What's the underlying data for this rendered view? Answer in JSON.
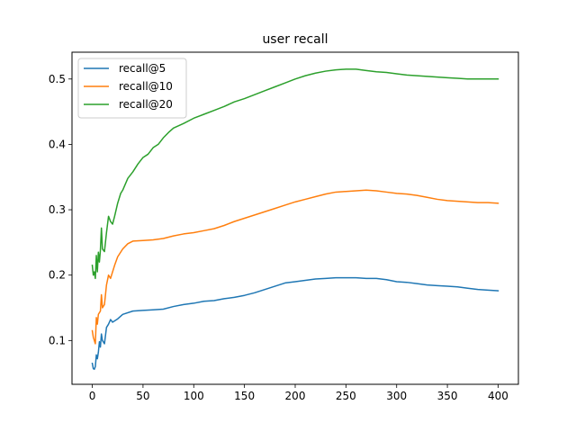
{
  "chart_data": {
    "type": "line",
    "title": "user recall",
    "xlabel": "",
    "ylabel": "",
    "xlim": [
      -20,
      420
    ],
    "ylim": [
      0.033,
      0.541
    ],
    "xticks": [
      0,
      50,
      100,
      150,
      200,
      250,
      300,
      350,
      400
    ],
    "yticks": [
      0.1,
      0.2,
      0.3,
      0.4,
      0.5
    ],
    "xtick_labels": [
      "0",
      "50",
      "100",
      "150",
      "200",
      "250",
      "300",
      "350",
      "400"
    ],
    "ytick_labels": [
      "0.1",
      "0.2",
      "0.3",
      "0.4",
      "0.5"
    ],
    "grid": false,
    "legend_position": "top-left",
    "series": [
      {
        "name": "recall@5",
        "color": "#1f77b4",
        "points": [
          [
            0,
            0.065
          ],
          [
            1,
            0.057
          ],
          [
            2,
            0.056
          ],
          [
            3,
            0.06
          ],
          [
            4,
            0.078
          ],
          [
            5,
            0.072
          ],
          [
            6,
            0.082
          ],
          [
            7,
            0.098
          ],
          [
            8,
            0.09
          ],
          [
            9,
            0.11
          ],
          [
            10,
            0.1
          ],
          [
            12,
            0.095
          ],
          [
            14,
            0.12
          ],
          [
            16,
            0.125
          ],
          [
            18,
            0.132
          ],
          [
            20,
            0.128
          ],
          [
            25,
            0.133
          ],
          [
            30,
            0.14
          ],
          [
            40,
            0.145
          ],
          [
            50,
            0.146
          ],
          [
            60,
            0.147
          ],
          [
            70,
            0.148
          ],
          [
            80,
            0.152
          ],
          [
            90,
            0.155
          ],
          [
            100,
            0.157
          ],
          [
            110,
            0.16
          ],
          [
            120,
            0.161
          ],
          [
            130,
            0.164
          ],
          [
            140,
            0.166
          ],
          [
            150,
            0.169
          ],
          [
            160,
            0.173
          ],
          [
            170,
            0.178
          ],
          [
            180,
            0.183
          ],
          [
            190,
            0.188
          ],
          [
            200,
            0.19
          ],
          [
            210,
            0.192
          ],
          [
            220,
            0.194
          ],
          [
            230,
            0.195
          ],
          [
            240,
            0.196
          ],
          [
            250,
            0.196
          ],
          [
            260,
            0.196
          ],
          [
            270,
            0.195
          ],
          [
            280,
            0.195
          ],
          [
            290,
            0.193
          ],
          [
            300,
            0.19
          ],
          [
            310,
            0.189
          ],
          [
            320,
            0.187
          ],
          [
            330,
            0.185
          ],
          [
            340,
            0.184
          ],
          [
            350,
            0.183
          ],
          [
            360,
            0.182
          ],
          [
            370,
            0.18
          ],
          [
            380,
            0.178
          ],
          [
            390,
            0.177
          ],
          [
            400,
            0.176
          ]
        ]
      },
      {
        "name": "recall@10",
        "color": "#ff7f0e",
        "points": [
          [
            0,
            0.115
          ],
          [
            1,
            0.105
          ],
          [
            2,
            0.1
          ],
          [
            3,
            0.095
          ],
          [
            4,
            0.135
          ],
          [
            5,
            0.125
          ],
          [
            6,
            0.14
          ],
          [
            8,
            0.145
          ],
          [
            9,
            0.17
          ],
          [
            10,
            0.15
          ],
          [
            12,
            0.155
          ],
          [
            14,
            0.185
          ],
          [
            16,
            0.2
          ],
          [
            18,
            0.195
          ],
          [
            20,
            0.205
          ],
          [
            22,
            0.215
          ],
          [
            25,
            0.228
          ],
          [
            30,
            0.24
          ],
          [
            35,
            0.248
          ],
          [
            40,
            0.252
          ],
          [
            50,
            0.253
          ],
          [
            60,
            0.254
          ],
          [
            70,
            0.256
          ],
          [
            80,
            0.26
          ],
          [
            90,
            0.263
          ],
          [
            100,
            0.265
          ],
          [
            110,
            0.268
          ],
          [
            120,
            0.271
          ],
          [
            130,
            0.276
          ],
          [
            140,
            0.282
          ],
          [
            150,
            0.287
          ],
          [
            160,
            0.292
          ],
          [
            170,
            0.297
          ],
          [
            180,
            0.302
          ],
          [
            190,
            0.307
          ],
          [
            200,
            0.312
          ],
          [
            210,
            0.316
          ],
          [
            220,
            0.32
          ],
          [
            230,
            0.324
          ],
          [
            240,
            0.327
          ],
          [
            250,
            0.328
          ],
          [
            260,
            0.329
          ],
          [
            270,
            0.33
          ],
          [
            280,
            0.329
          ],
          [
            290,
            0.327
          ],
          [
            300,
            0.325
          ],
          [
            310,
            0.324
          ],
          [
            320,
            0.322
          ],
          [
            330,
            0.319
          ],
          [
            340,
            0.316
          ],
          [
            350,
            0.314
          ],
          [
            360,
            0.313
          ],
          [
            370,
            0.312
          ],
          [
            380,
            0.311
          ],
          [
            390,
            0.311
          ],
          [
            400,
            0.31
          ]
        ]
      },
      {
        "name": "recall@20",
        "color": "#2ca02c",
        "points": [
          [
            0,
            0.215
          ],
          [
            1,
            0.2
          ],
          [
            2,
            0.205
          ],
          [
            3,
            0.195
          ],
          [
            4,
            0.23
          ],
          [
            5,
            0.205
          ],
          [
            6,
            0.235
          ],
          [
            7,
            0.22
          ],
          [
            8,
            0.238
          ],
          [
            9,
            0.272
          ],
          [
            10,
            0.24
          ],
          [
            12,
            0.236
          ],
          [
            14,
            0.265
          ],
          [
            16,
            0.29
          ],
          [
            18,
            0.282
          ],
          [
            20,
            0.278
          ],
          [
            22,
            0.29
          ],
          [
            25,
            0.31
          ],
          [
            28,
            0.325
          ],
          [
            30,
            0.33
          ],
          [
            35,
            0.348
          ],
          [
            40,
            0.358
          ],
          [
            45,
            0.37
          ],
          [
            50,
            0.38
          ],
          [
            55,
            0.385
          ],
          [
            60,
            0.395
          ],
          [
            65,
            0.4
          ],
          [
            70,
            0.41
          ],
          [
            75,
            0.418
          ],
          [
            80,
            0.425
          ],
          [
            90,
            0.432
          ],
          [
            100,
            0.44
          ],
          [
            110,
            0.446
          ],
          [
            120,
            0.452
          ],
          [
            130,
            0.458
          ],
          [
            140,
            0.465
          ],
          [
            150,
            0.47
          ],
          [
            160,
            0.476
          ],
          [
            170,
            0.482
          ],
          [
            180,
            0.488
          ],
          [
            190,
            0.494
          ],
          [
            200,
            0.5
          ],
          [
            210,
            0.505
          ],
          [
            220,
            0.509
          ],
          [
            230,
            0.512
          ],
          [
            240,
            0.514
          ],
          [
            250,
            0.515
          ],
          [
            260,
            0.515
          ],
          [
            270,
            0.513
          ],
          [
            280,
            0.511
          ],
          [
            290,
            0.51
          ],
          [
            300,
            0.508
          ],
          [
            310,
            0.506
          ],
          [
            320,
            0.505
          ],
          [
            330,
            0.504
          ],
          [
            340,
            0.503
          ],
          [
            350,
            0.502
          ],
          [
            360,
            0.501
          ],
          [
            370,
            0.5
          ],
          [
            380,
            0.5
          ],
          [
            390,
            0.5
          ],
          [
            400,
            0.5
          ]
        ]
      }
    ]
  }
}
